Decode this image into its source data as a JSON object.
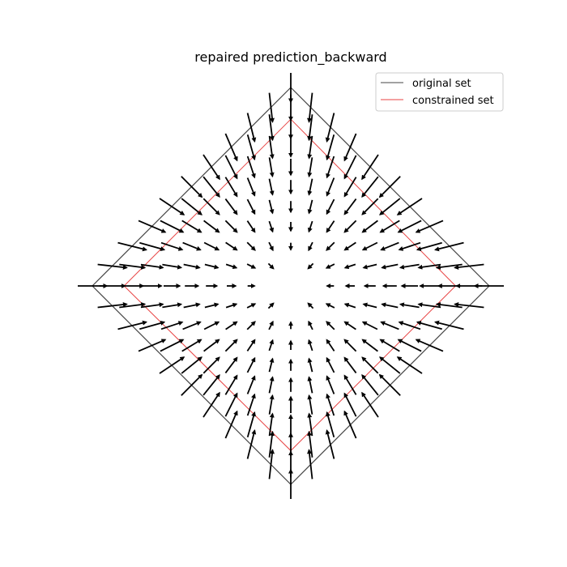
{
  "chart_data": {
    "type": "quiver",
    "title": "repaired prediction_backward",
    "xlabel": "",
    "ylabel": "",
    "xlim": [
      -1,
      1
    ],
    "ylim": [
      -1,
      1
    ],
    "grid": false,
    "axes_visible": false,
    "legend": {
      "placement": "top-right",
      "entries": [
        {
          "label": "original set",
          "color": "#444444"
        },
        {
          "label": "constrained set",
          "color": "#e84343"
        }
      ]
    },
    "series": [
      {
        "name": "original set",
        "kind": "polygon",
        "color": "#444444",
        "points": [
          [
            0,
            1
          ],
          [
            1,
            0
          ],
          [
            0,
            -1
          ],
          [
            -1,
            0
          ],
          [
            0,
            1
          ]
        ]
      },
      {
        "name": "constrained set",
        "kind": "polygon",
        "color": "#e84343",
        "points": [
          [
            0,
            0.84
          ],
          [
            0.83,
            0
          ],
          [
            0,
            -0.83
          ],
          [
            -0.84,
            0
          ],
          [
            0,
            0.84
          ]
        ]
      }
    ],
    "vector_field": {
      "domain": "|x| + |y| <= 1",
      "grid_spacing": 0.1,
      "color": "#000000",
      "description": "Arrows point toward the interior of the constrained set; magnitude grows with distance from the center, arrows near the boundary of the original set are largest."
    }
  }
}
